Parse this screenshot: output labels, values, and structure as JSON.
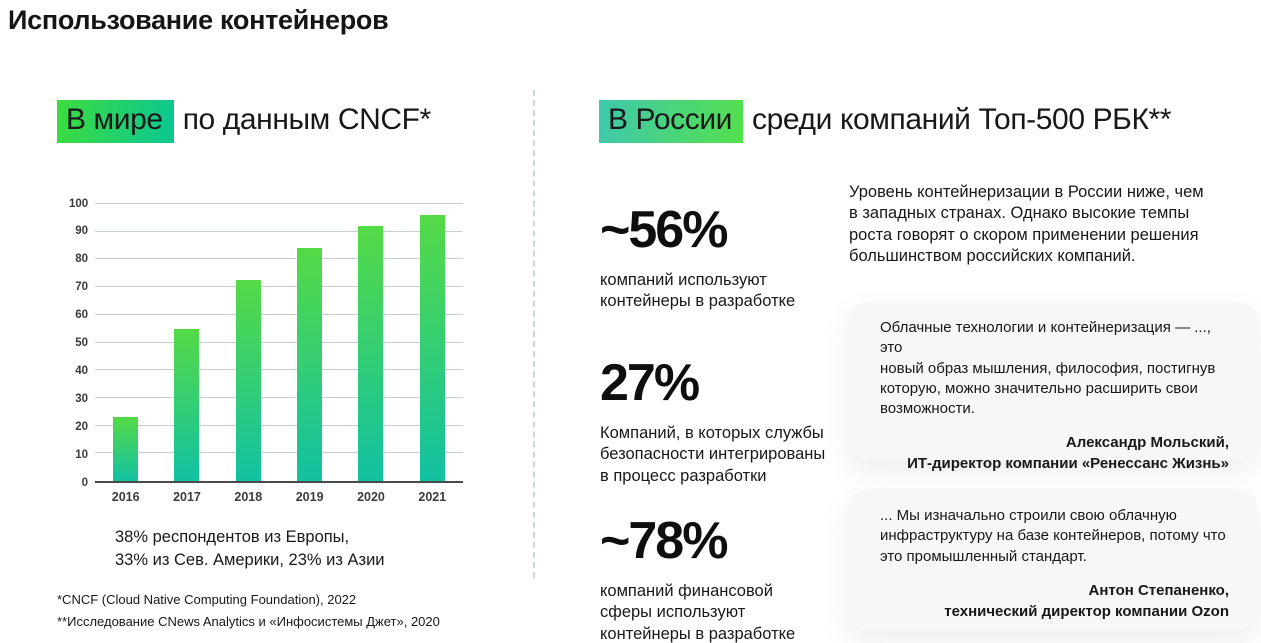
{
  "page": {
    "title": "Использование контейнеров"
  },
  "world_section": {
    "header_highlight": "В мире",
    "header_rest": "по данным CNCF*",
    "caption": "38% респондентов из Европы,\n33% из Сев. Америки, 23% из Азии",
    "footnote1": "*CNCF (Cloud Native Computing Foundation), 2022",
    "footnote2": "**Исследование CNews Analytics и «Инфосистемы Джет», 2020"
  },
  "chart_data": {
    "type": "bar",
    "categories": [
      "2016",
      "2017",
      "2018",
      "2019",
      "2020",
      "2021"
    ],
    "values": [
      23,
      55,
      72.5,
      84,
      92,
      96
    ],
    "title": "",
    "xlabel": "",
    "ylabel": "",
    "ylim": [
      0,
      100
    ],
    "ytick_step": 10,
    "grid": true,
    "legend": "none",
    "bar_gradient_top": "#55da46",
    "bar_gradient_bottom": "#12c1a2"
  },
  "russia_section": {
    "header_highlight": "В России",
    "header_rest": "среди компаний Топ-500 РБК**",
    "intro": "Уровень контейнеризации в России ниже, чем\nв западных странах. Однако высокие темпы\nроста говорят о скором применении решения\nбольшинством российских компаний.",
    "stats": [
      {
        "value": "~56%",
        "description": "компаний используют\nконтейнеры в разработке"
      },
      {
        "value": "27%",
        "description": "Компаний, в которых службы\nбезопасности интегрированы\nв процесс разработки"
      },
      {
        "value": "~78%",
        "description": "компаний финансовой\nсферы используют\nконтейнеры в разработке"
      }
    ],
    "quotes": [
      {
        "text": "Облачные технологии и контейнеризация — ..., это\nновый образ мышления, философия, постигнув\nкоторую, можно значительно расширить свои\nвозможности.",
        "author": "Александр Мольский,",
        "role": "ИТ-директор компании «Ренессанс Жизнь»"
      },
      {
        "text": "... Мы изначально строили свою облачную\nинфраструктуру на базе контейнеров, потому что\nэто промышленный стандарт.",
        "author": "Антон Степаненко,",
        "role": "технический директор компании Ozon"
      }
    ]
  },
  "colors": {
    "highlight_world_gradient": [
      "#3edc3e",
      "#0ac793"
    ],
    "highlight_russia_gradient": [
      "#3fc8ad",
      "#54e04d"
    ],
    "card_background": "#f6f7f9",
    "gridline": "#c8cdd3",
    "text": "#17181a"
  }
}
